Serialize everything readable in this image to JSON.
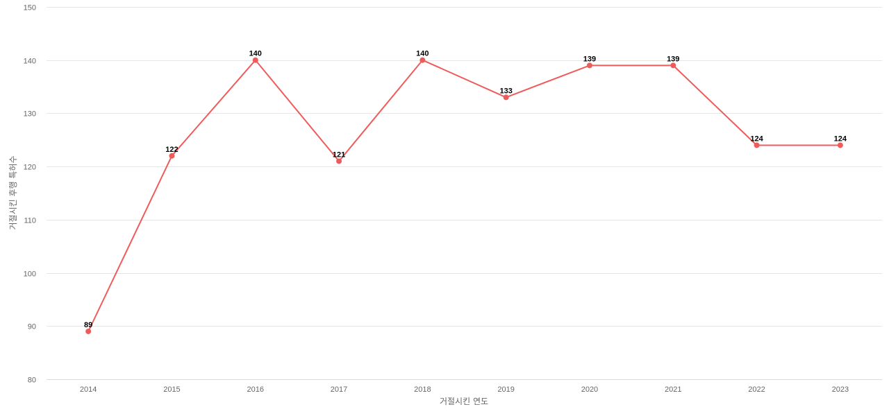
{
  "chart_data": {
    "type": "line",
    "title": "",
    "xlabel": "거절시킨 연도",
    "ylabel": "거절시킨 후행 특허수",
    "ylim": [
      80,
      150
    ],
    "yticks": [
      80,
      90,
      100,
      110,
      120,
      130,
      140,
      150
    ],
    "categories": [
      "2014",
      "2015",
      "2016",
      "2017",
      "2018",
      "2019",
      "2020",
      "2021",
      "2022",
      "2023"
    ],
    "series": [
      {
        "values": [
          89,
          122,
          140,
          121,
          140,
          133,
          139,
          139,
          124,
          124
        ],
        "color": "#ef5b5b"
      }
    ],
    "grid": true,
    "legend": "none"
  }
}
